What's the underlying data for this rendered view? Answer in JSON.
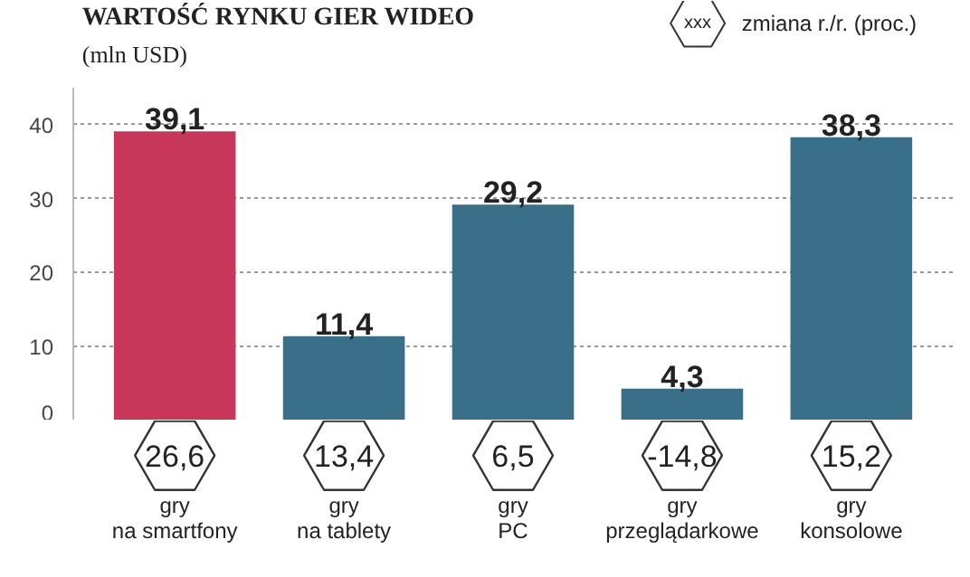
{
  "chart_data": {
    "type": "bar",
    "title": "WARTOŚĆ RYNKU GIER WIDEO",
    "subtitle": "(mln USD)",
    "categories": [
      "gry\nna smartfony",
      "gry\nna tablety",
      "gry\nPC",
      "gry\nprzeglądarkowe",
      "gry\nkonsolowe"
    ],
    "values": [
      39.1,
      11.4,
      29.2,
      4.3,
      38.3
    ],
    "value_labels": [
      "39,1",
      "11,4",
      "29,2",
      "4,3",
      "38,3"
    ],
    "colors": [
      "#c8375a",
      "#3a6f8a",
      "#3a6f8a",
      "#3a6f8a",
      "#3a6f8a"
    ],
    "ylim": [
      0,
      45
    ],
    "yticks": [
      0,
      10,
      20,
      30,
      40
    ],
    "grid": "y",
    "annotations": [
      "26,6",
      "13,4",
      "6,5",
      "-14,8",
      "15,2",
      "xxx",
      "zmiana r./r. (proc.)"
    ]
  }
}
